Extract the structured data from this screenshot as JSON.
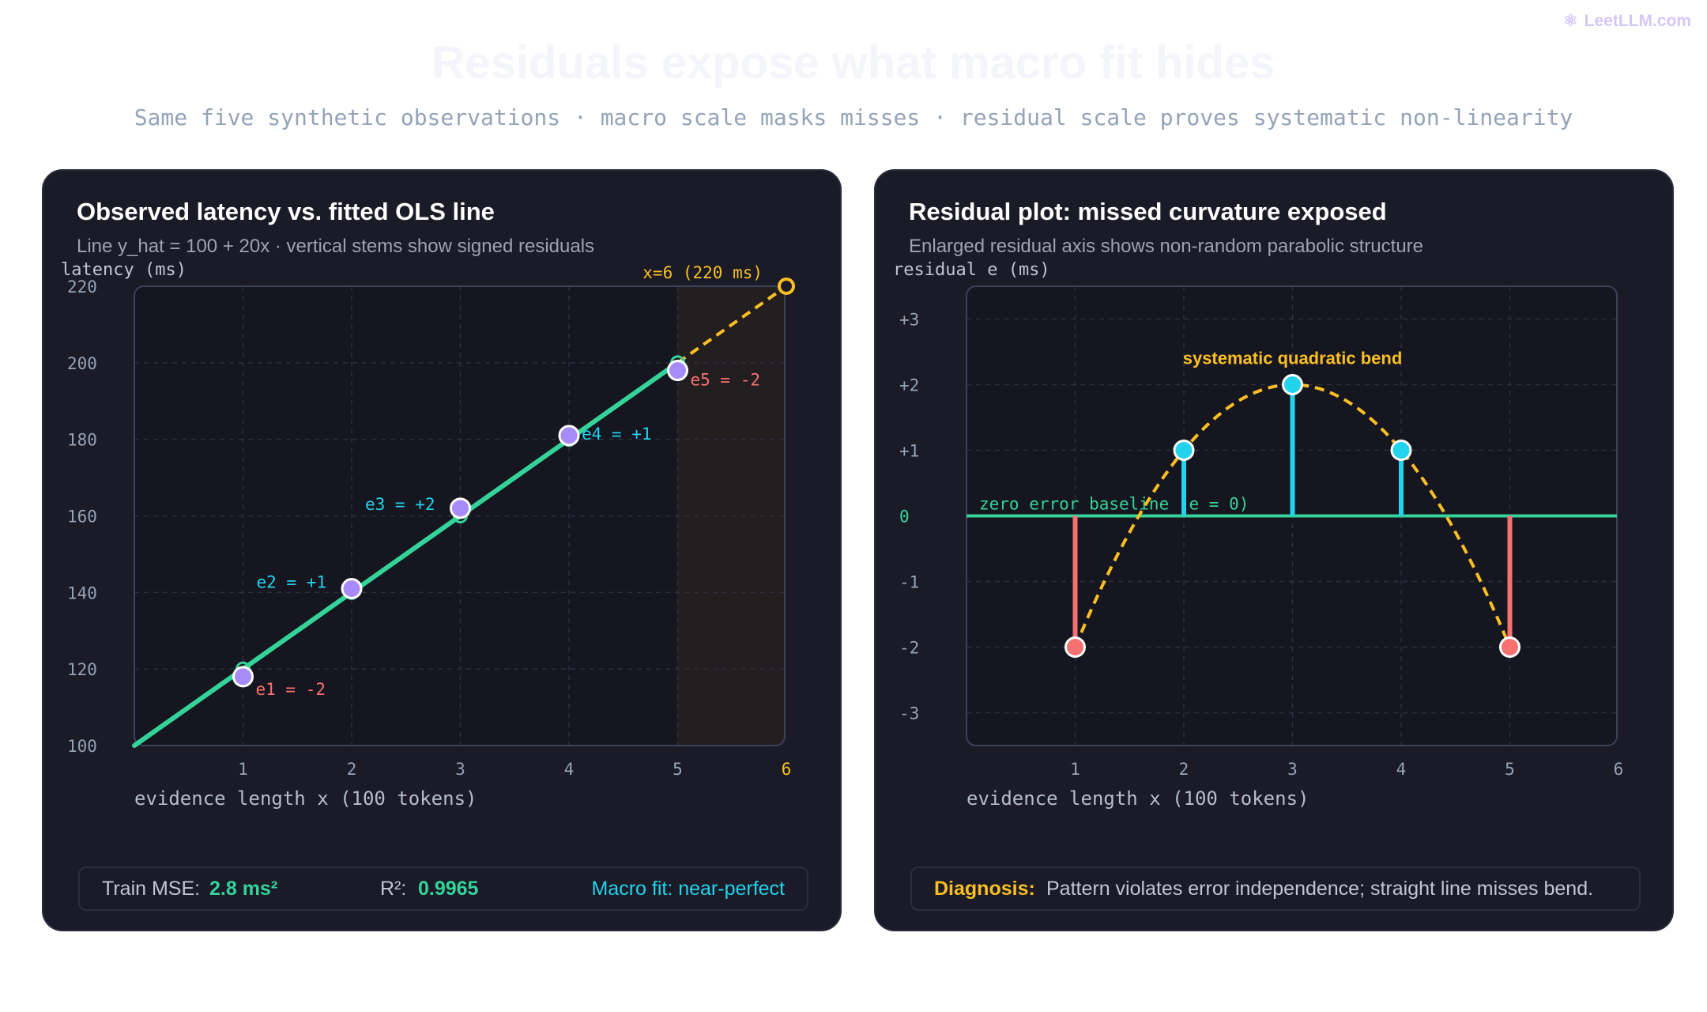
{
  "brand": {
    "name": "LeetLLM.com"
  },
  "header": {
    "title": "Residuals expose what macro fit hides",
    "subtitle": "Same five synthetic observations · macro scale masks misses · residual scale proves systematic non-linearity"
  },
  "colors": {
    "fit_line": "#34d399",
    "points": "#a78bfa",
    "positive": "#22d3ee",
    "negative": "#f87171",
    "accent": "#fbbf24",
    "panel_bg": "#1a1b26",
    "plot_bg": "#15161f"
  },
  "left_panel": {
    "title": "Observed latency vs. fitted OLS line",
    "subtitle": "Line y_hat = 100 + 20x · vertical stems show signed residuals",
    "footer": {
      "mse_label": "Train MSE:",
      "mse_value": "2.8 ms²",
      "r2_label": "R²:",
      "r2_value": "0.9965",
      "verdict": "Macro fit: near-perfect"
    }
  },
  "right_panel": {
    "title": "Residual plot: missed curvature exposed",
    "subtitle": "Enlarged residual axis shows non-random parabolic structure",
    "footer": {
      "diagnosis_label": "Diagnosis:",
      "diagnosis_text": "Pattern violates error independence; straight line misses bend."
    }
  },
  "chart_data": [
    {
      "type": "scatter",
      "title": "Observed latency vs. fitted OLS line",
      "xlabel": "evidence length x (100 tokens)",
      "ylabel": "latency (ms)",
      "xlim": [
        0,
        6
      ],
      "ylim": [
        100,
        220
      ],
      "x_ticks": [
        "1",
        "2",
        "3",
        "4",
        "5",
        "6"
      ],
      "y_ticks": [
        "100",
        "120",
        "140",
        "160",
        "180",
        "200",
        "220"
      ],
      "grid": true,
      "fit_line": {
        "intercept": 100,
        "slope": 20
      },
      "points": [
        {
          "x": 1,
          "y": 118,
          "label": "e1 = -2",
          "residual": -2
        },
        {
          "x": 2,
          "y": 141,
          "label": "e2 = +1",
          "residual": 1
        },
        {
          "x": 3,
          "y": 162,
          "label": "e3 = +2",
          "residual": 2
        },
        {
          "x": 4,
          "y": 181,
          "label": "e4 = +1",
          "residual": 1
        },
        {
          "x": 5,
          "y": 198,
          "label": "e5 = -2",
          "residual": -2
        }
      ],
      "extrapolation": {
        "x": 6,
        "y": 220,
        "label": "x=6 (220 ms)"
      }
    },
    {
      "type": "scatter",
      "title": "Residual plot: missed curvature exposed",
      "xlabel": "evidence length x (100 tokens)",
      "ylabel": "residual e (ms)",
      "xlim": [
        0,
        6
      ],
      "ylim": [
        -3.5,
        3.5
      ],
      "x_ticks": [
        "1",
        "2",
        "3",
        "4",
        "5",
        "6"
      ],
      "y_ticks": [
        "+3",
        "+2",
        "+1",
        "0",
        "-1",
        "-2",
        "-3"
      ],
      "grid": true,
      "baseline_label": "zero error baseline (e = 0)",
      "curve_label": "systematic quadratic bend",
      "points": [
        {
          "x": 1,
          "y": -2
        },
        {
          "x": 2,
          "y": 1
        },
        {
          "x": 3,
          "y": 2
        },
        {
          "x": 4,
          "y": 1
        },
        {
          "x": 5,
          "y": -2
        }
      ]
    }
  ]
}
